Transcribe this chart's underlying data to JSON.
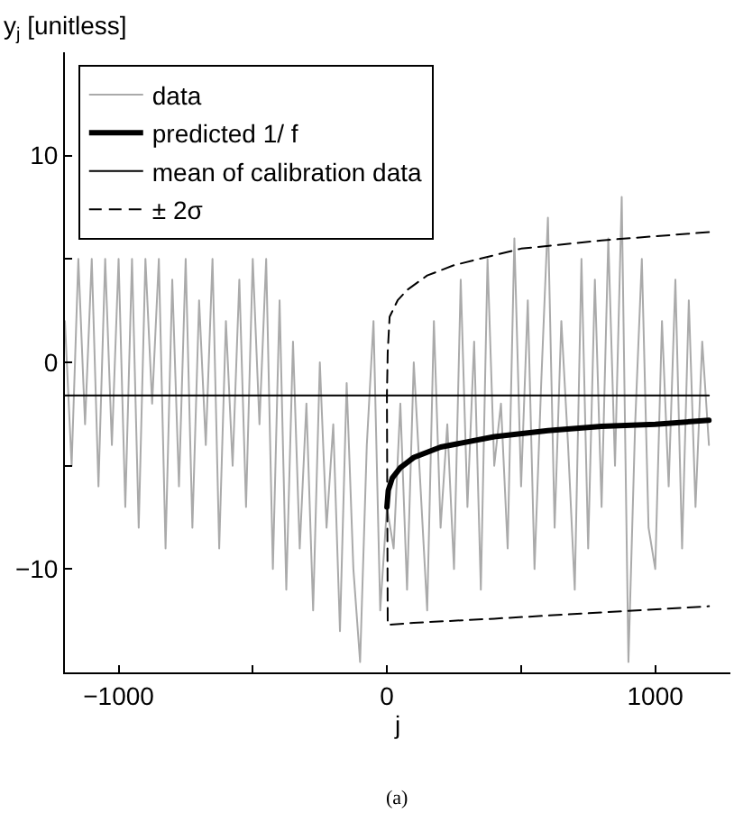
{
  "chart_data": {
    "type": "line",
    "ylabel": "y$_{j}$ [unitless]",
    "xlabel": "j",
    "annotations": [
      "(a)"
    ],
    "xlim": [
      -1200,
      1280
    ],
    "ylim": [
      -15,
      15
    ],
    "xticks": [
      -1000,
      {
        "value": -500,
        "label": null
      },
      0,
      {
        "value": 500,
        "label": null
      },
      1000
    ],
    "yticks": [
      -10,
      {
        "value": -5,
        "label": null
      },
      0,
      {
        "value": 5,
        "label": null
      },
      10
    ],
    "legend": "top left",
    "series": [
      {
        "name": "data",
        "color": "#aaaaaa",
        "line_style": "solid",
        "x": [
          -1200,
          -1175,
          -1150,
          -1125,
          -1100,
          -1075,
          -1050,
          -1025,
          -1000,
          -975,
          -950,
          -925,
          -900,
          -875,
          -850,
          -825,
          -800,
          -775,
          -750,
          -725,
          -700,
          -675,
          -650,
          -625,
          -600,
          -575,
          -550,
          -525,
          -500,
          -475,
          -450,
          -425,
          -400,
          -375,
          -350,
          -325,
          -300,
          -275,
          -250,
          -225,
          -200,
          -175,
          -150,
          -125,
          -100,
          -75,
          -50,
          -25,
          0,
          25,
          50,
          75,
          100,
          125,
          150,
          175,
          200,
          225,
          250,
          275,
          300,
          325,
          350,
          375,
          400,
          425,
          450,
          475,
          500,
          525,
          550,
          575,
          600,
          625,
          650,
          675,
          700,
          725,
          750,
          775,
          800,
          825,
          850,
          875,
          900,
          925,
          950,
          975,
          1000,
          1025,
          1050,
          1075,
          1100,
          1125,
          1150,
          1175,
          1200
        ],
        "values": [
          2,
          -5,
          5,
          -3,
          5,
          -6,
          5,
          -4,
          5,
          -7,
          5,
          -8,
          5,
          -2,
          5,
          -9,
          4,
          -6,
          5,
          -8,
          3,
          -4,
          5,
          -9,
          2,
          -5,
          4,
          -7,
          5,
          -3,
          5,
          -10,
          3,
          -11,
          1,
          -9,
          -2,
          -12,
          0,
          -8,
          -3,
          -13,
          -1,
          -10,
          -14.5,
          -4,
          2,
          -12,
          -7,
          -9,
          -2,
          -11,
          0,
          -6,
          -12,
          2,
          -8,
          -3,
          -10,
          4,
          -7,
          1,
          -11,
          5,
          -5,
          -2,
          -9,
          6,
          -6,
          3,
          -10,
          -1,
          7,
          -8,
          2,
          -4,
          -11,
          5,
          -9,
          4,
          -7,
          6,
          -5,
          8,
          -14.5,
          -3,
          5,
          -8,
          -10,
          2,
          -6,
          4,
          -9,
          3,
          -7,
          1,
          -4
        ]
      },
      {
        "name": "predicted 1/ f",
        "color": "#000000",
        "line_style": "solid",
        "x": [
          0,
          5,
          20,
          50,
          100,
          200,
          400,
          600,
          800,
          1000,
          1200
        ],
        "values": [
          -7,
          -6.2,
          -5.6,
          -5.1,
          -4.6,
          -4.1,
          -3.6,
          -3.3,
          -3.1,
          -3.0,
          -2.8
        ]
      },
      {
        "name": "mean of calibration data",
        "color": "#000000",
        "line_style": "solid",
        "x": [
          -1200,
          1200
        ],
        "values": [
          -1.6,
          -1.6
        ]
      },
      {
        "name": "± 2σ",
        "color": "#000000",
        "line_style": "dashed",
        "x": [
          1200,
          800,
          500,
          250,
          150,
          75,
          40,
          10,
          3,
          0,
          3,
          100,
          400,
          800,
          1200
        ],
        "values": [
          6.3,
          5.9,
          5.5,
          4.7,
          4.2,
          3.5,
          3.0,
          2.2,
          0.5,
          -1.6,
          -12.7,
          -12.6,
          -12.4,
          -12.1,
          -11.8
        ]
      }
    ]
  }
}
